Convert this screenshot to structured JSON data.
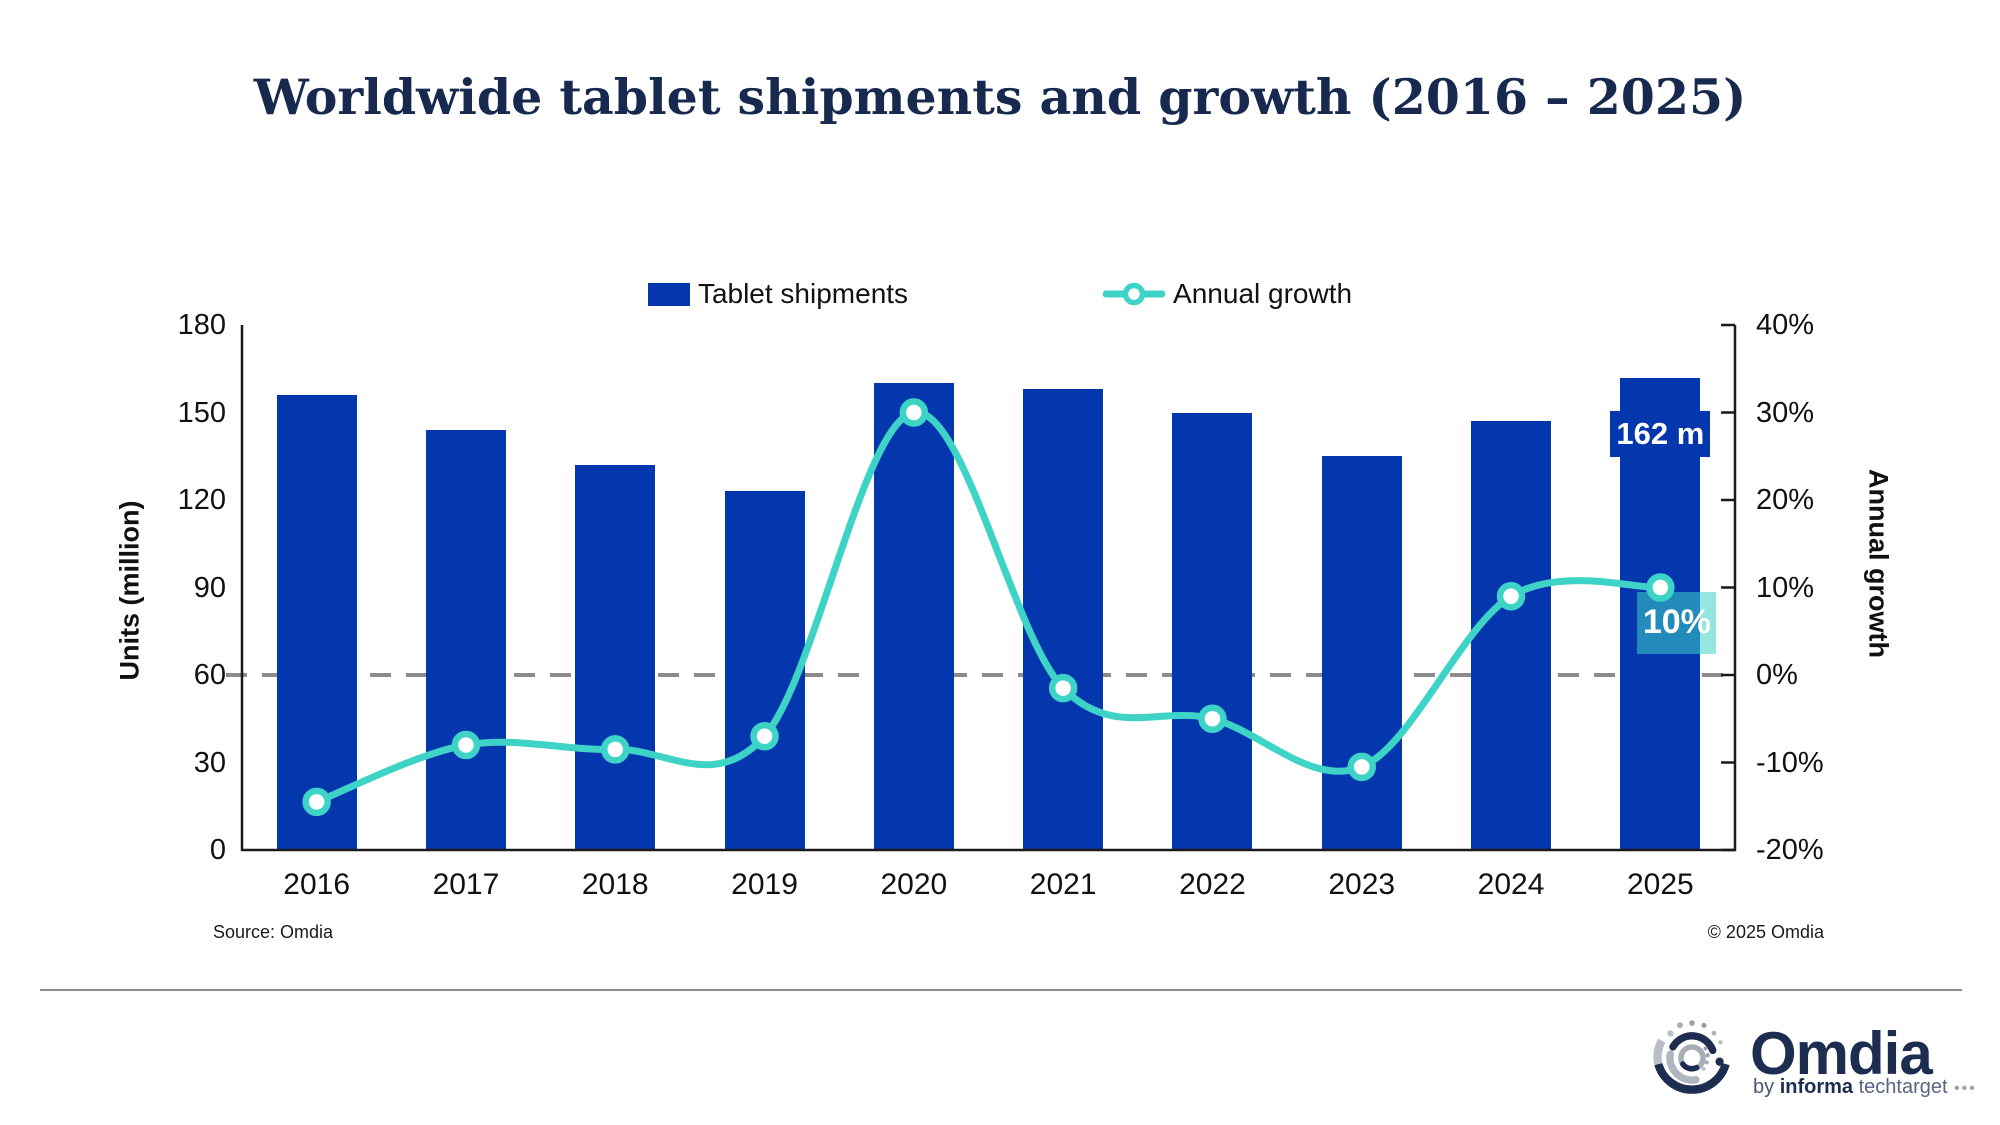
{
  "title": "Worldwide tablet shipments and growth (2016 – 2025)",
  "legend": {
    "shipments_label": "Tablet shipments",
    "growth_label": "Annual growth"
  },
  "chart_data": {
    "type": "bar+line",
    "title": "Worldwide tablet shipments and growth (2016 – 2025)",
    "categories": [
      "2016",
      "2017",
      "2018",
      "2019",
      "2020",
      "2021",
      "2022",
      "2023",
      "2024",
      "2025"
    ],
    "series": [
      {
        "name": "Tablet shipments",
        "type": "bar",
        "axis": "left",
        "unit": "million units",
        "color": "#0437ad",
        "values": [
          156,
          144,
          132,
          123,
          160,
          158,
          150,
          135,
          147,
          162
        ]
      },
      {
        "name": "Annual growth",
        "type": "line",
        "axis": "right",
        "unit": "%",
        "color": "#3ed3c7",
        "values": [
          -14.5,
          -8,
          -8.5,
          -7,
          30,
          -1.5,
          -5,
          -10.5,
          9,
          10
        ]
      }
    ],
    "left_axis": {
      "label": "Units (million)",
      "range": [
        0,
        180
      ],
      "ticks": [
        {
          "value": 0,
          "label": "0"
        },
        {
          "value": 30,
          "label": "30"
        },
        {
          "value": 60,
          "label": "60"
        },
        {
          "value": 90,
          "label": "90"
        },
        {
          "value": 120,
          "label": "120"
        },
        {
          "value": 150,
          "label": "150"
        },
        {
          "value": 180,
          "label": "180"
        }
      ]
    },
    "right_axis": {
      "label": "Annual growth",
      "range": [
        -20,
        40
      ],
      "ticks": [
        {
          "value": -20,
          "label": "-20%"
        },
        {
          "value": -10,
          "label": "-10%"
        },
        {
          "value": 0,
          "label": "0%"
        },
        {
          "value": 10,
          "label": "10%"
        },
        {
          "value": 20,
          "label": "20%"
        },
        {
          "value": 30,
          "label": "30%"
        },
        {
          "value": 40,
          "label": "40%"
        }
      ]
    },
    "zero_line": true,
    "grid": false,
    "legend_position": "top",
    "annotations": [
      {
        "target_series": "Tablet shipments",
        "category": "2025",
        "text": "162 m"
      },
      {
        "target_series": "Annual growth",
        "category": "2025",
        "text": "10%"
      }
    ]
  },
  "footer": {
    "source": "Source: Omdia",
    "copyright": "© 2025 Omdia"
  },
  "logo": {
    "wordmark": "Omdia",
    "tagline_by": "by ",
    "tagline_informa": "informa",
    "tagline_tech": " techtarget",
    "tagline_dots": " •••"
  },
  "colors": {
    "bar": "#0437ad",
    "line": "#3ed3c7",
    "title": "#17294e",
    "zero_line": "#8c8c8c",
    "axis": "#1a1a1a",
    "annotation_box": "rgba(62,209,199,0.55)"
  }
}
